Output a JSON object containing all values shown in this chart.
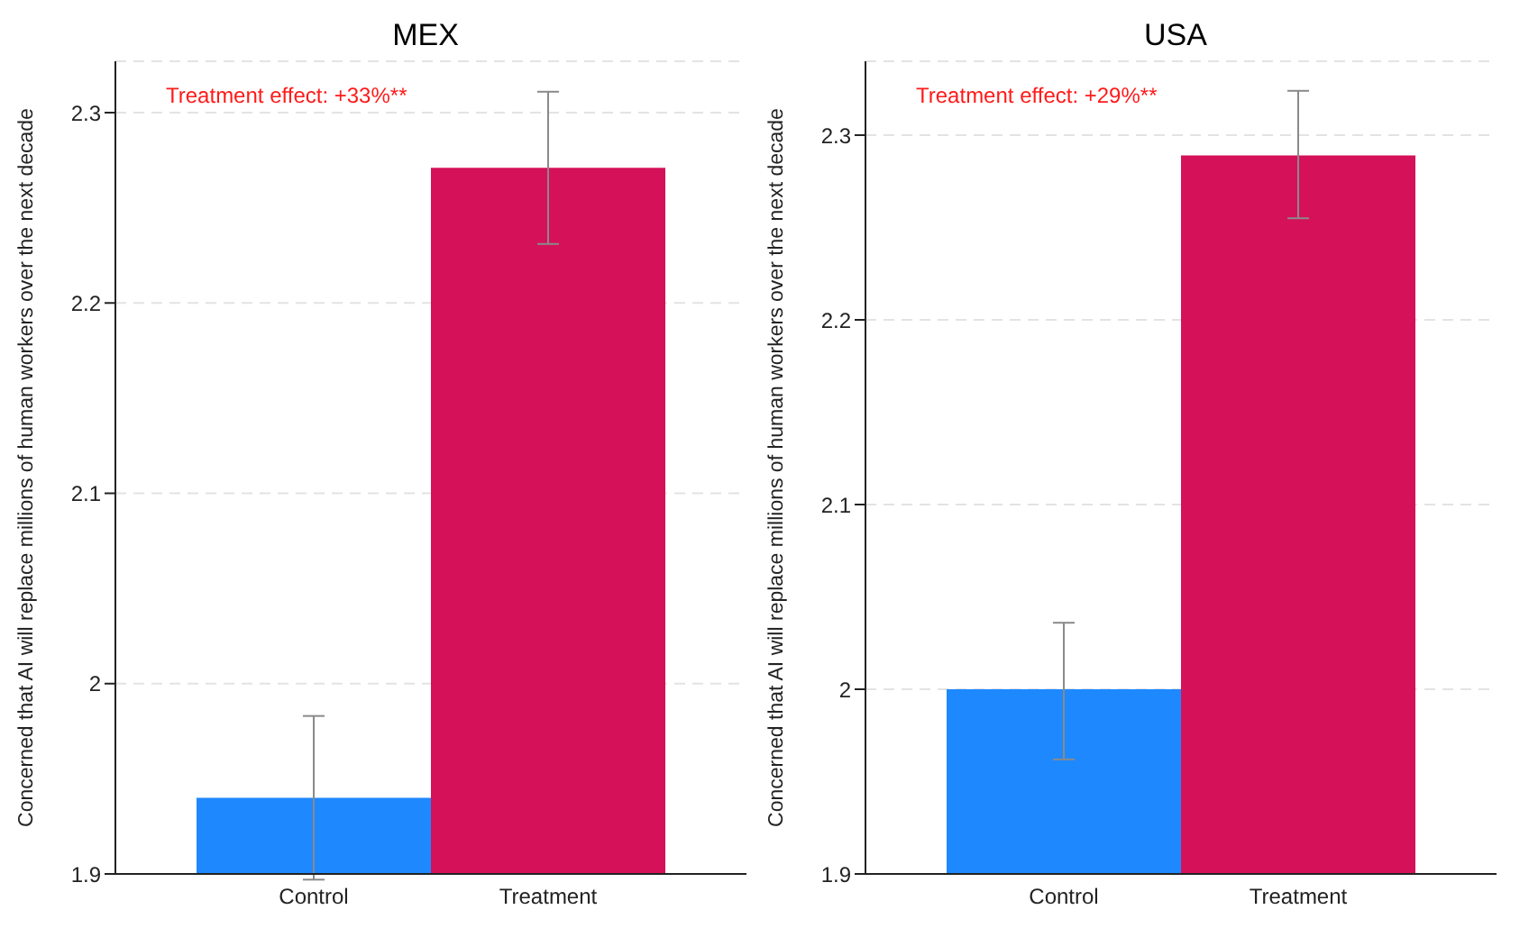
{
  "chart_data": [
    {
      "type": "bar",
      "title": "MEX",
      "ylabel": "Concerned that AI will replace millions of human workers over the next decade",
      "categories": [
        "Control",
        "Treatment"
      ],
      "values": [
        1.94,
        2.271
      ],
      "colors": [
        "#1e88ff",
        "#d41159"
      ],
      "errors": [
        [
          1.897,
          1.983
        ],
        [
          2.231,
          2.311
        ]
      ],
      "ylim": [
        1.9,
        2.327
      ],
      "yticks": [
        1.9,
        2,
        2.1,
        2.2,
        2.3
      ],
      "grid": "y",
      "annotations": [
        "Treatment effect: +33%**"
      ]
    },
    {
      "type": "bar",
      "title": "USA",
      "ylabel": "Concerned that AI will replace millions of human workers over the next decade",
      "categories": [
        "Control",
        "Treatment"
      ],
      "values": [
        2.0,
        2.289
      ],
      "colors": [
        "#1e88ff",
        "#d41159"
      ],
      "errors": [
        [
          1.962,
          2.036
        ],
        [
          2.255,
          2.324
        ]
      ],
      "ylim": [
        1.9,
        2.34
      ],
      "yticks": [
        1.9,
        2,
        2.1,
        2.2,
        2.3
      ],
      "grid": "y",
      "annotations": [
        "Treatment effect: +29%**"
      ]
    }
  ]
}
